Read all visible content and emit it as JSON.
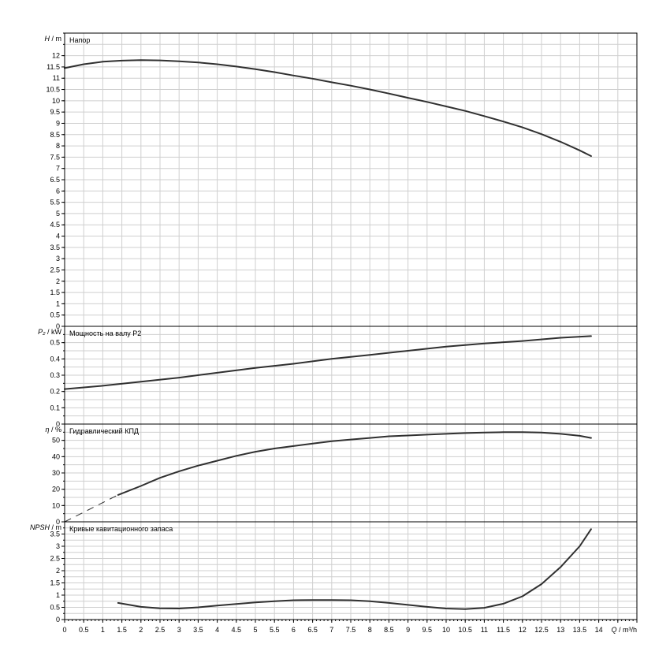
{
  "chart_data": {
    "type": "line",
    "x_axis": {
      "label": "Q / m³/h",
      "min": 0,
      "max": 15,
      "ticks": [
        "0",
        "0.5",
        "1",
        "1.5",
        "2",
        "2.5",
        "3",
        "3.5",
        "4",
        "4.5",
        "5",
        "5.5",
        "6",
        "6.5",
        "7",
        "7.5",
        "8",
        "8.5",
        "9",
        "9.5",
        "10",
        "10.5",
        "11",
        "11.5",
        "12",
        "12.5",
        "13",
        "13.5",
        "14"
      ]
    },
    "panels": [
      {
        "id": "head",
        "title": "Напор",
        "ylabel_main": "H",
        "ylabel_unit": "/ m",
        "ylim": [
          0,
          13
        ],
        "yticks": [
          "0",
          "0.5",
          "1",
          "1.5",
          "2",
          "2.5",
          "3",
          "3.5",
          "4",
          "4.5",
          "5",
          "5.5",
          "6",
          "6.5",
          "7",
          "7.5",
          "8",
          "8.5",
          "9",
          "9.5",
          "10",
          "10.5",
          "11",
          "11.5",
          "12"
        ],
        "grid_step": 0.5,
        "series": [
          {
            "x": [
              0,
              0.5,
              1,
              1.5,
              2,
              2.5,
              3,
              3.5,
              4,
              4.5,
              5,
              5.5,
              6,
              6.5,
              7,
              7.5,
              8,
              8.5,
              9,
              9.5,
              10,
              10.5,
              11,
              11.5,
              12,
              12.5,
              13,
              13.5,
              13.8
            ],
            "y": [
              11.45,
              11.62,
              11.73,
              11.78,
              11.8,
              11.79,
              11.75,
              11.7,
              11.62,
              11.52,
              11.4,
              11.27,
              11.12,
              10.98,
              10.82,
              10.67,
              10.5,
              10.32,
              10.13,
              9.95,
              9.75,
              9.55,
              9.32,
              9.08,
              8.82,
              8.52,
              8.18,
              7.8,
              7.55
            ]
          }
        ]
      },
      {
        "id": "power",
        "title": "Мощность на валу P2",
        "ylabel_main": "P₂",
        "ylabel_unit": "/ kW",
        "ylim": [
          0,
          0.6
        ],
        "yticks": [
          "0",
          "0.1",
          "0.2",
          "0.3",
          "0.4",
          "0.5"
        ],
        "grid_step": 0.05,
        "series": [
          {
            "x": [
              0,
              1,
              2,
              3,
              4,
              5,
              6,
              7,
              8,
              9,
              10,
              11,
              12,
              13,
              13.8
            ],
            "y": [
              0.215,
              0.235,
              0.26,
              0.285,
              0.315,
              0.345,
              0.37,
              0.4,
              0.425,
              0.45,
              0.475,
              0.495,
              0.51,
              0.53,
              0.54
            ]
          }
        ]
      },
      {
        "id": "efficiency",
        "title": "Гидравлический КПД",
        "ylabel_main": "η",
        "ylabel_unit": "/ %",
        "ylim": [
          0,
          60
        ],
        "yticks": [
          "0",
          "10",
          "20",
          "30",
          "40",
          "50"
        ],
        "grid_step": 5,
        "series": [
          {
            "x": [
              1.4,
              2,
              2.5,
              3,
              3.5,
              4,
              4.5,
              5,
              5.5,
              6,
              6.5,
              7,
              7.5,
              8,
              8.5,
              9,
              9.5,
              10,
              10.5,
              11,
              11.5,
              12,
              12.5,
              13,
              13.5,
              13.8
            ],
            "y": [
              16.5,
              22,
              27,
              31,
              34.5,
              37.5,
              40.5,
              43,
              45,
              46.5,
              48,
              49.5,
              50.5,
              51.5,
              52.5,
              53,
              53.5,
              54,
              54.5,
              54.8,
              55,
              55,
              54.8,
              54,
              52.8,
              51.5
            ]
          },
          {
            "x": [
              0,
              1.4
            ],
            "y": [
              0,
              16.5
            ],
            "dashed": true
          }
        ]
      },
      {
        "id": "npsh",
        "title": "Кривые кавитационного запаса",
        "ylabel_main": "NPSH",
        "ylabel_unit": "/ m",
        "ylim": [
          0,
          4
        ],
        "yticks": [
          "0",
          "0.5",
          "1",
          "1.5",
          "2",
          "2.5",
          "3",
          "3.5"
        ],
        "grid_step": 0.25,
        "series": [
          {
            "x": [
              1.4,
              2,
              2.5,
              3,
              3.5,
              4,
              4.5,
              5,
              5.5,
              6,
              6.5,
              7,
              7.5,
              8,
              8.5,
              9,
              9.5,
              10,
              10.5,
              11,
              11.5,
              12,
              12.5,
              13,
              13.5,
              13.8
            ],
            "y": [
              0.68,
              0.52,
              0.46,
              0.45,
              0.5,
              0.57,
              0.64,
              0.7,
              0.75,
              0.79,
              0.8,
              0.8,
              0.79,
              0.75,
              0.68,
              0.6,
              0.52,
              0.45,
              0.43,
              0.48,
              0.65,
              0.95,
              1.45,
              2.15,
              3.0,
              3.7
            ]
          }
        ]
      }
    ]
  }
}
